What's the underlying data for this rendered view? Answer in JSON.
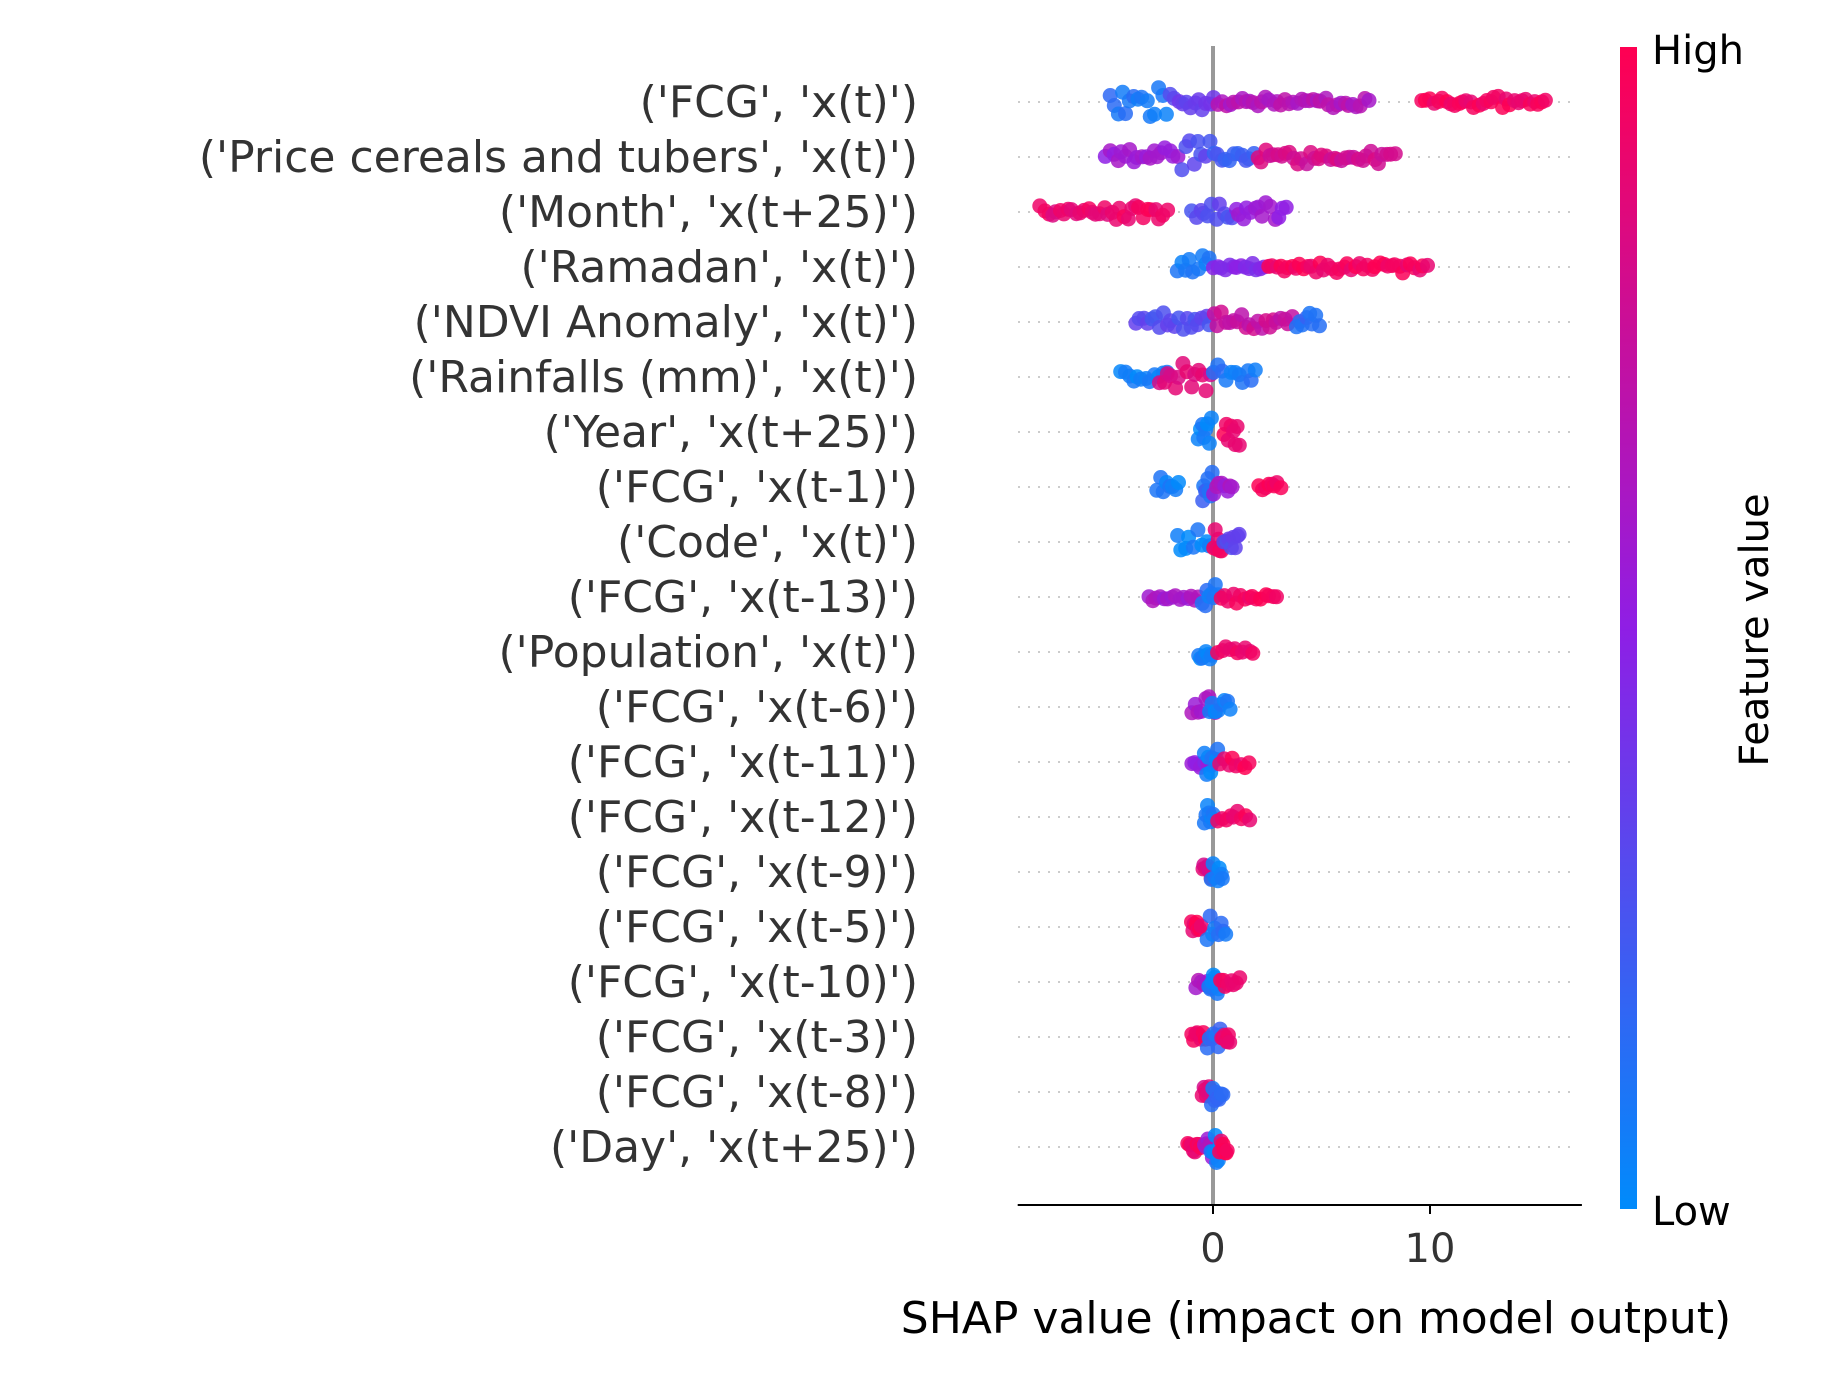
{
  "chart_data": {
    "type": "scatter",
    "subtype": "shap-beeswarm",
    "xlabel": "SHAP value (impact on model output)",
    "xlim": [
      -9,
      17
    ],
    "xticks": [
      0,
      10
    ],
    "zero_line": true,
    "grid": false,
    "colorbar": {
      "title": "Feature value",
      "high_label": "High",
      "low_label": "Low",
      "low_color": "#008bfb",
      "mid_color": "#8f1ee5",
      "high_color": "#ff0052"
    },
    "features": [
      {
        "name": "('FCG', 'x(t)')",
        "segments": [
          {
            "from": -4.8,
            "to": -2.0,
            "color": 0.1,
            "spread": 1.0
          },
          {
            "from": -2.0,
            "to": 0.2,
            "color": 0.35,
            "spread": 0.6
          },
          {
            "from": 0.2,
            "to": 7.3,
            "color": 0.65,
            "spread": 0.3
          },
          {
            "from": 9.6,
            "to": 15.5,
            "color": 0.95,
            "spread": 0.3
          }
        ]
      },
      {
        "name": "('Price cereals and tubers', 'x(t)')",
        "segments": [
          {
            "from": -5.0,
            "to": -1.5,
            "color": 0.55,
            "spread": 0.5
          },
          {
            "from": -1.5,
            "to": 0.0,
            "color": 0.3,
            "spread": 0.8
          },
          {
            "from": 0.0,
            "to": 2.0,
            "color": 0.2,
            "spread": 0.3
          },
          {
            "from": 2.0,
            "to": 8.5,
            "color": 0.8,
            "spread": 0.35
          }
        ]
      },
      {
        "name": "('Month', 'x(t+25)')",
        "segments": [
          {
            "from": -8.0,
            "to": -4.5,
            "color": 0.9,
            "spread": 0.3
          },
          {
            "from": -4.5,
            "to": -2.0,
            "color": 0.95,
            "spread": 0.6
          },
          {
            "from": -1.0,
            "to": 1.0,
            "color": 0.3,
            "spread": 0.6
          },
          {
            "from": 1.0,
            "to": 3.5,
            "color": 0.55,
            "spread": 0.5
          }
        ]
      },
      {
        "name": "('Ramadan', 'x(t)')",
        "segments": [
          {
            "from": -1.7,
            "to": 0.0,
            "color": 0.05,
            "spread": 0.9
          },
          {
            "from": 0.0,
            "to": 2.5,
            "color": 0.45,
            "spread": 0.2
          },
          {
            "from": 2.5,
            "to": 10.0,
            "color": 0.95,
            "spread": 0.3
          }
        ]
      },
      {
        "name": "('NDVI Anomaly', 'x(t)')",
        "segments": [
          {
            "from": -3.6,
            "to": 0.0,
            "color": 0.3,
            "spread": 0.5
          },
          {
            "from": 0.0,
            "to": 3.8,
            "color": 0.75,
            "spread": 0.5
          },
          {
            "from": 3.8,
            "to": 5.0,
            "color": 0.15,
            "spread": 0.5
          }
        ]
      },
      {
        "name": "('Rainfalls (mm)', 'x(t)')",
        "segments": [
          {
            "from": -4.3,
            "to": -2.0,
            "color": 0.05,
            "spread": 0.3
          },
          {
            "from": -2.5,
            "to": 0.0,
            "color": 0.85,
            "spread": 0.9
          },
          {
            "from": 0.0,
            "to": 2.1,
            "color": 0.1,
            "spread": 0.9
          }
        ]
      },
      {
        "name": "('Year', 'x(t+25)')",
        "segments": [
          {
            "from": -0.7,
            "to": 0.0,
            "color": 0.05,
            "spread": 0.9
          },
          {
            "from": 0.5,
            "to": 1.3,
            "color": 0.95,
            "spread": 0.8
          }
        ]
      },
      {
        "name": "('FCG', 'x(t-1)')",
        "segments": [
          {
            "from": -2.6,
            "to": -1.5,
            "color": 0.05,
            "spread": 0.5
          },
          {
            "from": -0.5,
            "to": 0.0,
            "color": 0.15,
            "spread": 0.8
          },
          {
            "from": 0.0,
            "to": 1.0,
            "color": 0.6,
            "spread": 0.4
          },
          {
            "from": 2.1,
            "to": 3.2,
            "color": 0.95,
            "spread": 0.3
          }
        ]
      },
      {
        "name": "('Code', 'x(t)')",
        "segments": [
          {
            "from": -1.7,
            "to": 0.0,
            "color": 0.05,
            "spread": 0.7
          },
          {
            "from": 0.0,
            "to": 0.6,
            "color": 0.95,
            "spread": 1.0
          },
          {
            "from": 0.5,
            "to": 1.3,
            "color": 0.3,
            "spread": 0.6
          }
        ]
      },
      {
        "name": "('FCG', 'x(t-13)')",
        "segments": [
          {
            "from": -3.0,
            "to": -0.5,
            "color": 0.6,
            "spread": 0.2
          },
          {
            "from": -0.5,
            "to": 0.3,
            "color": 0.1,
            "spread": 0.9
          },
          {
            "from": 0.3,
            "to": 3.1,
            "color": 0.95,
            "spread": 0.3
          }
        ]
      },
      {
        "name": "('Population', 'x(t)')",
        "segments": [
          {
            "from": -0.7,
            "to": 0.0,
            "color": 0.05,
            "spread": 0.9
          },
          {
            "from": 0.2,
            "to": 2.0,
            "color": 0.95,
            "spread": 0.4
          }
        ]
      },
      {
        "name": "('FCG', 'x(t-6)')",
        "segments": [
          {
            "from": -1.0,
            "to": 0.2,
            "color": 0.6,
            "spread": 0.5
          },
          {
            "from": -0.2,
            "to": 0.9,
            "color": 0.05,
            "spread": 0.8
          }
        ]
      },
      {
        "name": "('FCG', 'x(t-11)')",
        "segments": [
          {
            "from": -1.0,
            "to": 0.0,
            "color": 0.5,
            "spread": 0.3
          },
          {
            "from": -0.4,
            "to": 0.3,
            "color": 0.05,
            "spread": 0.8
          },
          {
            "from": 0.3,
            "to": 1.8,
            "color": 0.95,
            "spread": 0.3
          }
        ]
      },
      {
        "name": "('FCG', 'x(t-12)')",
        "segments": [
          {
            "from": -0.4,
            "to": 0.1,
            "color": 0.05,
            "spread": 0.7
          },
          {
            "from": 0.2,
            "to": 1.8,
            "color": 0.95,
            "spread": 0.3
          }
        ]
      },
      {
        "name": "('FCG', 'x(t-9)')",
        "segments": [
          {
            "from": -0.5,
            "to": 0.1,
            "color": 0.85,
            "spread": 0.4
          },
          {
            "from": -0.1,
            "to": 0.5,
            "color": 0.05,
            "spread": 0.8
          }
        ]
      },
      {
        "name": "('FCG', 'x(t-5)')",
        "segments": [
          {
            "from": -1.0,
            "to": -0.5,
            "color": 0.95,
            "spread": 0.3
          },
          {
            "from": -0.3,
            "to": 0.7,
            "color": 0.1,
            "spread": 0.8
          }
        ]
      },
      {
        "name": "('FCG', 'x(t-10)')",
        "segments": [
          {
            "from": -0.8,
            "to": 0.2,
            "color": 0.6,
            "spread": 0.4
          },
          {
            "from": -0.2,
            "to": 0.3,
            "color": 0.05,
            "spread": 0.8
          },
          {
            "from": 0.3,
            "to": 1.3,
            "color": 0.95,
            "spread": 0.3
          }
        ]
      },
      {
        "name": "('FCG', 'x(t-3)')",
        "segments": [
          {
            "from": -1.0,
            "to": -0.3,
            "color": 0.95,
            "spread": 0.3
          },
          {
            "from": -0.3,
            "to": 0.5,
            "color": 0.15,
            "spread": 0.8
          },
          {
            "from": 0.4,
            "to": 0.8,
            "color": 0.9,
            "spread": 0.3
          }
        ]
      },
      {
        "name": "('FCG', 'x(t-8)')",
        "segments": [
          {
            "from": -0.5,
            "to": 0.0,
            "color": 0.85,
            "spread": 0.4
          },
          {
            "from": -0.1,
            "to": 0.5,
            "color": 0.15,
            "spread": 0.8
          }
        ]
      },
      {
        "name": "('Day', 'x(t+25)')",
        "segments": [
          {
            "from": -1.2,
            "to": -0.5,
            "color": 0.95,
            "spread": 0.3
          },
          {
            "from": -0.4,
            "to": 0.0,
            "color": 0.6,
            "spread": 0.6
          },
          {
            "from": -0.1,
            "to": 0.4,
            "color": 0.05,
            "spread": 0.9
          },
          {
            "from": 0.3,
            "to": 0.7,
            "color": 0.95,
            "spread": 0.4
          }
        ]
      }
    ]
  }
}
